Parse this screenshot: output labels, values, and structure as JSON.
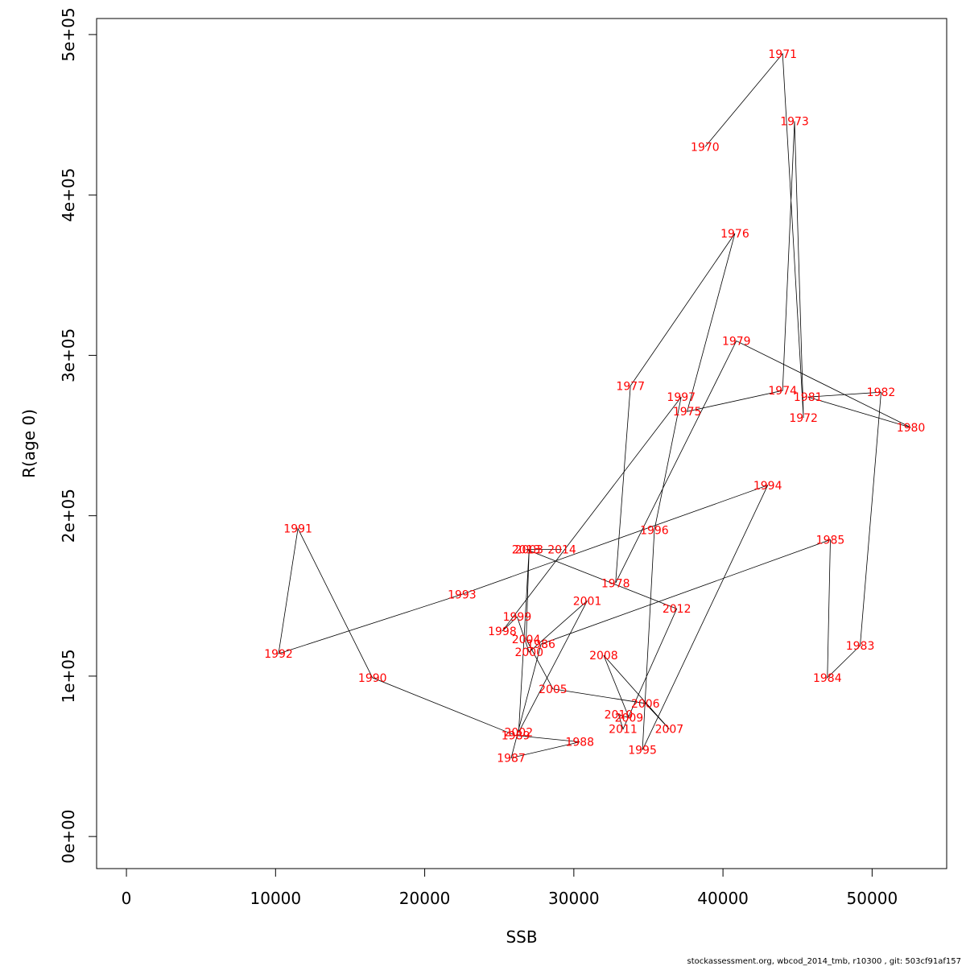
{
  "chart_data": {
    "type": "line",
    "xlabel": "SSB",
    "ylabel": "R(age 0)",
    "xlim": [
      -2000,
      55000
    ],
    "ylim": [
      -20000,
      510000
    ],
    "x_ticks": [
      {
        "value": 0,
        "label": "0"
      },
      {
        "value": 10000,
        "label": "10000"
      },
      {
        "value": 20000,
        "label": "20000"
      },
      {
        "value": 30000,
        "label": "30000"
      },
      {
        "value": 40000,
        "label": "40000"
      },
      {
        "value": 50000,
        "label": "50000"
      }
    ],
    "y_ticks": [
      {
        "value": 0,
        "label": "0e+00"
      },
      {
        "value": 100000,
        "label": "1e+05"
      },
      {
        "value": 200000,
        "label": "2e+05"
      },
      {
        "value": 300000,
        "label": "3e+05"
      },
      {
        "value": 400000,
        "label": "4e+05"
      },
      {
        "value": 500000,
        "label": "5e+05"
      }
    ],
    "grid": false,
    "line_color": "#000000",
    "label_color": "#ff0000",
    "points": [
      {
        "year": "1970",
        "x": 38800,
        "y": 430000
      },
      {
        "year": "1971",
        "x": 44000,
        "y": 488000
      },
      {
        "year": "1972",
        "x": 45400,
        "y": 261000
      },
      {
        "year": "1973",
        "x": 44800,
        "y": 446000
      },
      {
        "year": "1974",
        "x": 44000,
        "y": 278000
      },
      {
        "year": "1975",
        "x": 37600,
        "y": 265000
      },
      {
        "year": "1976",
        "x": 40800,
        "y": 376000
      },
      {
        "year": "1977",
        "x": 33800,
        "y": 281000
      },
      {
        "year": "1978",
        "x": 32800,
        "y": 158000
      },
      {
        "year": "1979",
        "x": 40900,
        "y": 309000
      },
      {
        "year": "1980",
        "x": 52600,
        "y": 255000
      },
      {
        "year": "1981",
        "x": 45700,
        "y": 274000
      },
      {
        "year": "1982",
        "x": 50600,
        "y": 277000
      },
      {
        "year": "1983",
        "x": 49200,
        "y": 119000
      },
      {
        "year": "1984",
        "x": 47000,
        "y": 99000
      },
      {
        "year": "1985",
        "x": 47200,
        "y": 185000
      },
      {
        "year": "1986",
        "x": 27800,
        "y": 120000
      },
      {
        "year": "1987",
        "x": 25800,
        "y": 49000
      },
      {
        "year": "1988",
        "x": 30400,
        "y": 59000
      },
      {
        "year": "1989",
        "x": 26100,
        "y": 63000
      },
      {
        "year": "1990",
        "x": 16500,
        "y": 99000
      },
      {
        "year": "1991",
        "x": 11500,
        "y": 192000
      },
      {
        "year": "1992",
        "x": 10200,
        "y": 114000
      },
      {
        "year": "1993",
        "x": 22500,
        "y": 151000
      },
      {
        "year": "1994",
        "x": 43000,
        "y": 219000
      },
      {
        "year": "1995",
        "x": 34600,
        "y": 54000
      },
      {
        "year": "1996",
        "x": 35400,
        "y": 191000
      },
      {
        "year": "1997",
        "x": 37200,
        "y": 274000
      },
      {
        "year": "1998",
        "x": 25200,
        "y": 128000
      },
      {
        "year": "1999",
        "x": 26200,
        "y": 137000
      },
      {
        "year": "2000",
        "x": 27000,
        "y": 115000
      },
      {
        "year": "2001",
        "x": 30900,
        "y": 147000
      },
      {
        "year": "2002",
        "x": 26300,
        "y": 65000
      },
      {
        "year": "2003",
        "x": 27000,
        "y": 179000
      },
      {
        "year": "2004",
        "x": 26800,
        "y": 123000
      },
      {
        "year": "2005",
        "x": 28600,
        "y": 92000
      },
      {
        "year": "2006",
        "x": 34800,
        "y": 83000
      },
      {
        "year": "2007",
        "x": 36400,
        "y": 67000
      },
      {
        "year": "2008",
        "x": 32000,
        "y": 113000
      },
      {
        "year": "2009",
        "x": 33700,
        "y": 74000
      },
      {
        "year": "2010",
        "x": 33000,
        "y": 76000
      },
      {
        "year": "2011",
        "x": 33300,
        "y": 67000
      },
      {
        "year": "2012",
        "x": 36900,
        "y": 142000
      },
      {
        "year": "2013",
        "x": 26800,
        "y": 179000
      },
      {
        "year": "2014",
        "x": 29200,
        "y": 179000
      }
    ]
  },
  "footer": "stockassessment.org, wbcod_2014_tmb, r10300 , git: 503cf91af157"
}
